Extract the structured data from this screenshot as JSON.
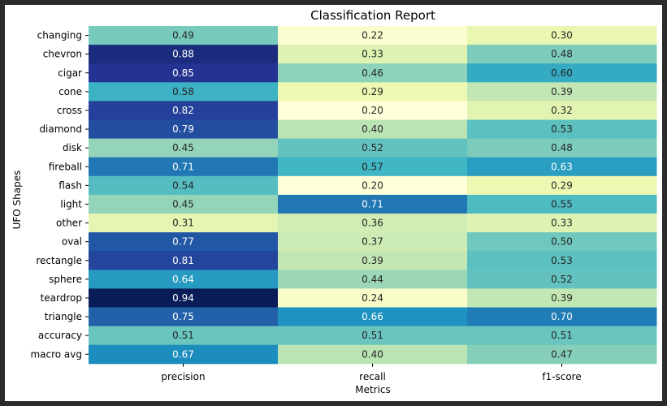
{
  "chart_data": {
    "type": "heatmap",
    "title": "Classification Report",
    "xlabel": "Metrics",
    "ylabel": "UFO Shapes",
    "columns": [
      "precision",
      "recall",
      "f1-score"
    ],
    "rows": [
      "changing",
      "chevron",
      "cigar",
      "cone",
      "cross",
      "diamond",
      "disk",
      "fireball",
      "flash",
      "light",
      "other",
      "oval",
      "rectangle",
      "sphere",
      "teardrop",
      "triangle",
      "accuracy",
      "macro avg"
    ],
    "values": [
      [
        0.49,
        0.22,
        0.3
      ],
      [
        0.88,
        0.33,
        0.48
      ],
      [
        0.85,
        0.46,
        0.6
      ],
      [
        0.58,
        0.29,
        0.39
      ],
      [
        0.82,
        0.2,
        0.32
      ],
      [
        0.79,
        0.4,
        0.53
      ],
      [
        0.45,
        0.52,
        0.48
      ],
      [
        0.71,
        0.57,
        0.63
      ],
      [
        0.54,
        0.2,
        0.29
      ],
      [
        0.45,
        0.71,
        0.55
      ],
      [
        0.31,
        0.36,
        0.33
      ],
      [
        0.77,
        0.37,
        0.5
      ],
      [
        0.81,
        0.39,
        0.53
      ],
      [
        0.64,
        0.44,
        0.52
      ],
      [
        0.94,
        0.24,
        0.39
      ],
      [
        0.75,
        0.66,
        0.7
      ],
      [
        0.51,
        0.51,
        0.51
      ],
      [
        0.67,
        0.4,
        0.47
      ]
    ],
    "value_range": [
      0.2,
      0.94
    ],
    "colormap": "YlGnBu",
    "colormap_stops": [
      "#ffffd9",
      "#edf8b1",
      "#c7e9b4",
      "#7fcdbb",
      "#41b6c4",
      "#1d91c0",
      "#225ea8",
      "#253494",
      "#081d58"
    ],
    "annotations_shown": true,
    "colorbar": false
  }
}
